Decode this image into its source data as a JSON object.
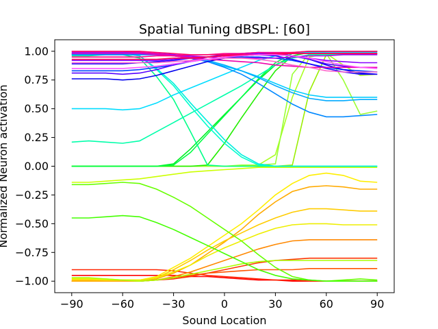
{
  "chart_data": {
    "type": "line",
    "title": "Spatial Tuning dBSPL: [60]",
    "xlabel": "Sound Location",
    "ylabel": "Normalized Neuron activation",
    "xlim": [
      -100,
      100
    ],
    "ylim": [
      -1.1,
      1.1
    ],
    "xticks": [
      -90,
      -60,
      -30,
      0,
      30,
      60,
      90
    ],
    "xtick_labels": [
      "−90",
      "−60",
      "−30",
      "0",
      "30",
      "60",
      "90"
    ],
    "yticks": [
      1.0,
      0.75,
      0.5,
      0.25,
      0.0,
      -0.25,
      -0.5,
      -0.75,
      -1.0
    ],
    "ytick_labels": [
      "1.00",
      "0.75",
      "0.50",
      "0.25",
      "0.00",
      "−0.25",
      "−0.50",
      "−0.75",
      "−1.00"
    ],
    "grid": false,
    "legend": "none",
    "x": [
      -90,
      -80,
      -70,
      -60,
      -50,
      -40,
      -30,
      -20,
      -10,
      0,
      10,
      20,
      30,
      40,
      50,
      60,
      70,
      80,
      90
    ],
    "series": [
      {
        "color": "#ff0000",
        "values": [
          -0.95,
          -0.95,
          -0.95,
          -0.95,
          -0.95,
          -0.95,
          -0.95,
          -0.96,
          -0.96,
          -0.97,
          -0.98,
          -0.99,
          -0.99,
          -1.0,
          -1.0,
          -1.0,
          -1.0,
          -1.0,
          -1.0
        ]
      },
      {
        "color": "#ff2200",
        "values": [
          -0.9,
          -0.9,
          -0.9,
          -0.9,
          -0.9,
          -0.9,
          -0.91,
          -0.93,
          -0.95,
          -0.96,
          -0.97,
          -0.98,
          -0.99,
          -0.99,
          -1.0,
          -1.0,
          -1.0,
          -1.0,
          -1.0
        ]
      },
      {
        "color": "#ff3300",
        "values": [
          -1.0,
          -1.0,
          -1.0,
          -1.0,
          -1.0,
          -0.99,
          -0.98,
          -0.96,
          -0.93,
          -0.9,
          -0.87,
          -0.84,
          -0.82,
          -0.81,
          -0.8,
          -0.8,
          -0.8,
          -0.8,
          -0.8
        ]
      },
      {
        "color": "#ff5500",
        "values": [
          -1.0,
          -1.0,
          -1.0,
          -1.0,
          -1.0,
          -0.99,
          -0.97,
          -0.95,
          -0.93,
          -0.92,
          -0.91,
          -0.9,
          -0.9,
          -0.9,
          -0.89,
          -0.89,
          -0.89,
          -0.89,
          -0.89
        ]
      },
      {
        "color": "#ff8800",
        "values": [
          -1.0,
          -1.0,
          -1.0,
          -1.0,
          -1.0,
          -0.99,
          -0.96,
          -0.92,
          -0.87,
          -0.82,
          -0.77,
          -0.72,
          -0.68,
          -0.65,
          -0.64,
          -0.64,
          -0.64,
          -0.64,
          -0.64
        ]
      },
      {
        "color": "#ffaa00",
        "values": [
          -1.0,
          -1.0,
          -1.0,
          -1.0,
          -1.0,
          -0.98,
          -0.93,
          -0.86,
          -0.76,
          -0.66,
          -0.55,
          -0.42,
          -0.31,
          -0.22,
          -0.18,
          -0.17,
          -0.18,
          -0.2,
          -0.2
        ]
      },
      {
        "color": "#ffcc00",
        "values": [
          -0.99,
          -0.99,
          -0.99,
          -0.99,
          -0.99,
          -0.97,
          -0.9,
          -0.82,
          -0.73,
          -0.65,
          -0.58,
          -0.51,
          -0.45,
          -0.4,
          -0.37,
          -0.37,
          -0.38,
          -0.39,
          -0.39
        ]
      },
      {
        "color": "#ffee00",
        "values": [
          -0.98,
          -0.98,
          -0.98,
          -0.99,
          -0.99,
          -0.96,
          -0.88,
          -0.8,
          -0.7,
          -0.6,
          -0.5,
          -0.38,
          -0.25,
          -0.15,
          -0.08,
          -0.06,
          -0.08,
          -0.13,
          -0.14
        ]
      },
      {
        "color": "#eeee00",
        "values": [
          -0.98,
          -0.98,
          -0.99,
          -0.99,
          -0.99,
          -0.97,
          -0.92,
          -0.86,
          -0.78,
          -0.71,
          -0.65,
          -0.59,
          -0.54,
          -0.51,
          -0.5,
          -0.5,
          -0.51,
          -0.51,
          -0.51
        ]
      },
      {
        "color": "#ccff00",
        "values": [
          -0.14,
          -0.14,
          -0.13,
          -0.12,
          -0.11,
          -0.09,
          -0.07,
          -0.05,
          -0.04,
          -0.03,
          -0.02,
          -0.01,
          -0.01,
          -0.01,
          -0.01,
          -0.01,
          -0.01,
          -0.01,
          -0.01
        ]
      },
      {
        "color": "#aaff00",
        "values": [
          -0.97,
          -0.97,
          -0.98,
          -0.99,
          -1.0,
          -0.99,
          -0.97,
          -0.94,
          -0.91,
          -0.88,
          -0.85,
          -0.83,
          -0.82,
          -0.82,
          -0.82,
          -0.82,
          -0.82,
          -0.82,
          -0.82
        ]
      },
      {
        "color": "#99ee00",
        "values": [
          0.0,
          0.0,
          0.0,
          0.0,
          0.0,
          0.0,
          0.0,
          0.0,
          0.0,
          0.0,
          0.0,
          0.0,
          0.0,
          0.01,
          0.65,
          0.97,
          0.98,
          0.98,
          0.98
        ]
      },
      {
        "color": "#aaff22",
        "values": [
          0.0,
          0.0,
          0.0,
          0.0,
          0.0,
          0.0,
          0.0,
          0.0,
          0.0,
          0.0,
          0.0,
          0.01,
          0.1,
          0.6,
          0.95,
          0.98,
          0.88,
          0.79,
          0.8
        ]
      },
      {
        "color": "#99ff33",
        "values": [
          0.0,
          0.0,
          0.0,
          0.0,
          0.0,
          0.0,
          0.0,
          0.0,
          0.0,
          0.0,
          0.01,
          0.01,
          0.02,
          0.8,
          0.98,
          0.98,
          0.75,
          0.45,
          0.48
        ]
      },
      {
        "color": "#66ff00",
        "values": [
          -0.16,
          -0.16,
          -0.15,
          -0.14,
          -0.15,
          -0.2,
          -0.27,
          -0.35,
          -0.45,
          -0.55,
          -0.65,
          -0.77,
          -0.88,
          -0.96,
          -0.99,
          -1.0,
          -0.99,
          -0.98,
          -0.99
        ]
      },
      {
        "color": "#44ff00",
        "values": [
          -0.45,
          -0.45,
          -0.44,
          -0.43,
          -0.44,
          -0.49,
          -0.55,
          -0.62,
          -0.69,
          -0.76,
          -0.83,
          -0.9,
          -0.95,
          -0.98,
          -0.99,
          -1.0,
          -1.0,
          -1.0,
          -1.0
        ]
      },
      {
        "color": "#22ee00",
        "values": [
          0.0,
          0.0,
          0.0,
          0.0,
          0.0,
          0.0,
          0.0,
          0.0,
          0.01,
          0.2,
          0.42,
          0.63,
          0.83,
          0.96,
          0.99,
          1.0,
          1.0,
          1.0,
          1.0
        ]
      },
      {
        "color": "#00ee22",
        "values": [
          0.0,
          0.0,
          0.0,
          0.0,
          0.0,
          0.0,
          0.02,
          0.15,
          0.3,
          0.45,
          0.6,
          0.75,
          0.88,
          0.96,
          0.99,
          1.0,
          1.0,
          1.0,
          1.0
        ]
      },
      {
        "color": "#00ff44",
        "values": [
          0.0,
          0.0,
          0.0,
          0.0,
          0.0,
          0.0,
          0.01,
          0.12,
          0.28,
          0.44,
          0.6,
          0.76,
          0.9,
          0.98,
          1.0,
          1.0,
          1.0,
          1.0,
          1.0
        ]
      },
      {
        "color": "#00ff88",
        "values": [
          0.96,
          0.96,
          0.97,
          0.97,
          0.94,
          0.78,
          0.58,
          0.3,
          0.01,
          0.0,
          0.0,
          0.0,
          0.0,
          0.0,
          0.0,
          0.0,
          0.0,
          0.0,
          0.0
        ]
      },
      {
        "color": "#00ffaa",
        "values": [
          0.21,
          0.22,
          0.21,
          0.2,
          0.22,
          0.3,
          0.38,
          0.46,
          0.54,
          0.62,
          0.7,
          0.79,
          0.88,
          0.94,
          0.97,
          0.97,
          0.97,
          0.97,
          0.97
        ]
      },
      {
        "color": "#00ffcc",
        "values": [
          0.97,
          0.97,
          0.98,
          0.98,
          0.96,
          0.84,
          0.7,
          0.52,
          0.35,
          0.2,
          0.08,
          0.01,
          0.0,
          0.0,
          0.0,
          0.0,
          0.0,
          0.0,
          0.0
        ]
      },
      {
        "color": "#00eedd",
        "values": [
          0.98,
          0.98,
          0.98,
          0.98,
          0.96,
          0.85,
          0.72,
          0.55,
          0.39,
          0.23,
          0.1,
          0.02,
          0.0,
          0.0,
          0.0,
          0.0,
          0.0,
          0.0,
          0.0
        ]
      },
      {
        "color": "#00ddff",
        "values": [
          0.5,
          0.5,
          0.5,
          0.49,
          0.5,
          0.55,
          0.62,
          0.68,
          0.74,
          0.8,
          0.86,
          0.92,
          0.96,
          0.98,
          0.99,
          0.99,
          0.99,
          0.99,
          0.99
        ]
      },
      {
        "color": "#00ccff",
        "values": [
          0.97,
          0.97,
          0.97,
          0.97,
          0.97,
          0.97,
          0.96,
          0.94,
          0.91,
          0.87,
          0.83,
          0.78,
          0.72,
          0.66,
          0.62,
          0.6,
          0.6,
          0.6,
          0.6
        ]
      },
      {
        "color": "#00aaff",
        "values": [
          0.98,
          0.98,
          0.98,
          0.98,
          0.98,
          0.98,
          0.97,
          0.95,
          0.92,
          0.88,
          0.83,
          0.77,
          0.7,
          0.64,
          0.59,
          0.57,
          0.57,
          0.58,
          0.58
        ]
      },
      {
        "color": "#0088ff",
        "values": [
          0.97,
          0.97,
          0.97,
          0.97,
          0.97,
          0.97,
          0.96,
          0.94,
          0.91,
          0.86,
          0.8,
          0.72,
          0.63,
          0.54,
          0.47,
          0.43,
          0.43,
          0.44,
          0.45
        ]
      },
      {
        "color": "#0044ff",
        "values": [
          0.83,
          0.83,
          0.83,
          0.83,
          0.84,
          0.86,
          0.88,
          0.91,
          0.93,
          0.94,
          0.95,
          0.95,
          0.94,
          0.92,
          0.89,
          0.86,
          0.84,
          0.83,
          0.82
        ]
      },
      {
        "color": "#0000ee",
        "values": [
          0.76,
          0.76,
          0.76,
          0.75,
          0.76,
          0.79,
          0.83,
          0.87,
          0.91,
          0.94,
          0.96,
          0.97,
          0.97,
          0.96,
          0.93,
          0.88,
          0.84,
          0.81,
          0.8
        ]
      },
      {
        "color": "#2200ff",
        "values": [
          0.89,
          0.89,
          0.89,
          0.89,
          0.9,
          0.91,
          0.92,
          0.94,
          0.95,
          0.96,
          0.97,
          0.97,
          0.96,
          0.93,
          0.89,
          0.85,
          0.82,
          0.8,
          0.8
        ]
      },
      {
        "color": "#5500ff",
        "values": [
          0.81,
          0.81,
          0.81,
          0.8,
          0.81,
          0.84,
          0.88,
          0.92,
          0.95,
          0.97,
          0.98,
          0.99,
          0.98,
          0.96,
          0.93,
          0.89,
          0.87,
          0.86,
          0.86
        ]
      },
      {
        "color": "#8800ff",
        "values": [
          0.92,
          0.92,
          0.92,
          0.92,
          0.92,
          0.92,
          0.93,
          0.94,
          0.95,
          0.96,
          0.97,
          0.98,
          0.98,
          0.96,
          0.94,
          0.92,
          0.91,
          0.9,
          0.9
        ]
      },
      {
        "color": "#aa00ee",
        "values": [
          0.99,
          0.99,
          0.99,
          0.99,
          0.99,
          0.98,
          0.97,
          0.96,
          0.95,
          0.94,
          0.94,
          0.94,
          0.94,
          0.95,
          0.96,
          0.96,
          0.97,
          0.97,
          0.97
        ]
      },
      {
        "color": "#cc00cc",
        "values": [
          0.98,
          0.98,
          0.98,
          0.98,
          0.98,
          0.97,
          0.96,
          0.95,
          0.95,
          0.96,
          0.97,
          0.97,
          0.98,
          0.98,
          0.98,
          0.98,
          0.98,
          0.98,
          0.98
        ]
      },
      {
        "color": "#ee00aa",
        "values": [
          1.0,
          1.0,
          1.0,
          1.0,
          0.99,
          0.98,
          0.96,
          0.94,
          0.93,
          0.92,
          0.91,
          0.9,
          0.88,
          0.87,
          0.86,
          0.86,
          0.86,
          0.86,
          0.86
        ]
      },
      {
        "color": "#ff0088",
        "values": [
          0.95,
          0.95,
          0.95,
          0.95,
          0.95,
          0.96,
          0.96,
          0.97,
          0.97,
          0.98,
          0.98,
          0.99,
          0.99,
          0.99,
          1.0,
          1.0,
          1.0,
          1.0,
          1.0
        ]
      },
      {
        "color": "#ff0066",
        "values": [
          1.0,
          1.0,
          1.0,
          1.0,
          1.0,
          0.99,
          0.98,
          0.97,
          0.97,
          0.97,
          0.97,
          0.97,
          0.98,
          0.99,
          1.0,
          1.0,
          1.0,
          1.0,
          1.0
        ]
      },
      {
        "color": "#ff0044",
        "values": [
          0.93,
          0.93,
          0.93,
          0.93,
          0.93,
          0.93,
          0.94,
          0.94,
          0.95,
          0.96,
          0.96,
          0.97,
          0.97,
          0.98,
          0.98,
          0.98,
          0.98,
          0.98,
          0.98
        ]
      },
      {
        "color": "#ff66cc",
        "values": [
          0.9,
          0.9,
          0.9,
          0.9,
          0.9,
          0.9,
          0.91,
          0.92,
          0.93,
          0.94,
          0.94,
          0.93,
          0.91,
          0.88,
          0.86,
          0.83,
          0.82,
          0.82,
          0.82
        ]
      },
      {
        "color": "#ff55ff",
        "values": [
          0.85,
          0.85,
          0.85,
          0.85,
          0.86,
          0.87,
          0.89,
          0.91,
          0.93,
          0.95,
          0.96,
          0.97,
          0.97,
          0.96,
          0.94,
          0.91,
          0.88,
          0.86,
          0.85
        ]
      }
    ]
  }
}
